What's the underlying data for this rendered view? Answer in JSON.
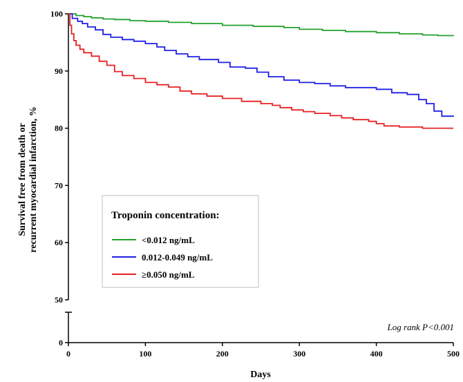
{
  "chart_data": {
    "type": "line",
    "xlabel": "Days",
    "ylabel_lines": [
      "Survival free from death or",
      "recurrent myocardial infarction, %"
    ],
    "x_ticks": [
      0,
      100,
      200,
      300,
      400,
      500
    ],
    "y_ticks": [
      50,
      60,
      70,
      80,
      90,
      100
    ],
    "y_break_tick": 0,
    "xlim": [
      0,
      500
    ],
    "ylim": [
      50,
      100
    ],
    "grid": false,
    "legend": {
      "title": "Troponin concentration:",
      "placement": "lower-left"
    },
    "annotation": "Log rank P<0.001",
    "series": [
      {
        "name": "<0.012 ng/mL",
        "color": "#22a02a",
        "points": [
          [
            0,
            100
          ],
          [
            10,
            99.7
          ],
          [
            20,
            99.5
          ],
          [
            30,
            99.3
          ],
          [
            45,
            99.1
          ],
          [
            60,
            99.0
          ],
          [
            80,
            98.8
          ],
          [
            100,
            98.7
          ],
          [
            130,
            98.5
          ],
          [
            160,
            98.3
          ],
          [
            200,
            98.0
          ],
          [
            240,
            97.8
          ],
          [
            280,
            97.6
          ],
          [
            300,
            97.3
          ],
          [
            330,
            97.1
          ],
          [
            360,
            96.9
          ],
          [
            400,
            96.7
          ],
          [
            430,
            96.5
          ],
          [
            460,
            96.3
          ],
          [
            480,
            96.2
          ],
          [
            500,
            96.1
          ]
        ]
      },
      {
        "name": "0.012-0.049 ng/mL",
        "color": "#1f1fe6",
        "points": [
          [
            0,
            100
          ],
          [
            5,
            99.2
          ],
          [
            12,
            98.7
          ],
          [
            18,
            98.3
          ],
          [
            25,
            97.7
          ],
          [
            35,
            97.2
          ],
          [
            45,
            96.4
          ],
          [
            55,
            95.9
          ],
          [
            70,
            95.5
          ],
          [
            85,
            95.2
          ],
          [
            100,
            94.8
          ],
          [
            115,
            94.2
          ],
          [
            125,
            93.6
          ],
          [
            140,
            93.0
          ],
          [
            155,
            92.5
          ],
          [
            170,
            92.0
          ],
          [
            185,
            92.0
          ],
          [
            195,
            91.5
          ],
          [
            210,
            90.7
          ],
          [
            230,
            90.5
          ],
          [
            245,
            89.8
          ],
          [
            260,
            89.0
          ],
          [
            280,
            88.4
          ],
          [
            300,
            88.0
          ],
          [
            320,
            87.8
          ],
          [
            340,
            87.4
          ],
          [
            360,
            87.1
          ],
          [
            380,
            87.1
          ],
          [
            400,
            86.8
          ],
          [
            420,
            86.2
          ],
          [
            440,
            85.9
          ],
          [
            455,
            85.0
          ],
          [
            465,
            84.3
          ],
          [
            475,
            83.0
          ],
          [
            485,
            82.1
          ],
          [
            500,
            82.0
          ]
        ]
      },
      {
        "name": "≥0.050 ng/mL",
        "color": "#e62020",
        "points": [
          [
            0,
            100
          ],
          [
            2,
            98.0
          ],
          [
            4,
            96.5
          ],
          [
            7,
            95.3
          ],
          [
            10,
            94.5
          ],
          [
            15,
            93.8
          ],
          [
            20,
            93.2
          ],
          [
            30,
            92.6
          ],
          [
            40,
            91.7
          ],
          [
            50,
            91.0
          ],
          [
            60,
            89.9
          ],
          [
            70,
            89.2
          ],
          [
            85,
            88.7
          ],
          [
            100,
            88.0
          ],
          [
            115,
            87.6
          ],
          [
            130,
            87.2
          ],
          [
            145,
            86.5
          ],
          [
            160,
            86.0
          ],
          [
            180,
            85.6
          ],
          [
            200,
            85.2
          ],
          [
            225,
            84.7
          ],
          [
            250,
            84.3
          ],
          [
            265,
            84.0
          ],
          [
            275,
            83.6
          ],
          [
            290,
            83.2
          ],
          [
            305,
            82.9
          ],
          [
            320,
            82.6
          ],
          [
            340,
            82.2
          ],
          [
            355,
            81.8
          ],
          [
            370,
            81.5
          ],
          [
            390,
            81.2
          ],
          [
            400,
            80.8
          ],
          [
            410,
            80.4
          ],
          [
            430,
            80.2
          ],
          [
            460,
            80.0
          ],
          [
            500,
            80.0
          ]
        ]
      }
    ]
  }
}
